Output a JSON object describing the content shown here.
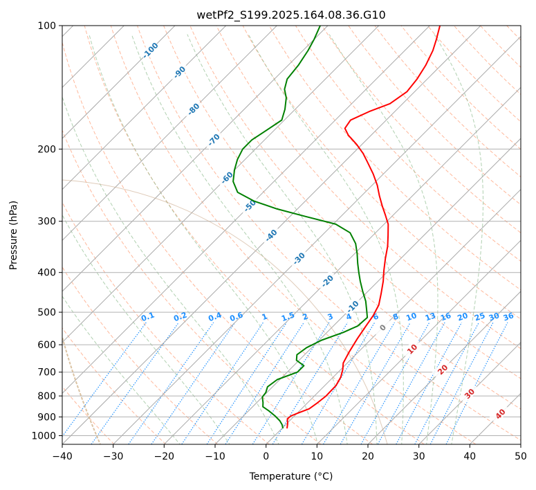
{
  "chart_data": {
    "type": "skew-t",
    "title": "wetPf2_S199.2025.164.08.36.G10",
    "xlabel": "Temperature (°C)",
    "ylabel": "Pressure (hPa)",
    "xlim": [
      -40,
      50
    ],
    "ylim_hPa": [
      1050,
      100
    ],
    "x_ticks": [
      -40,
      -30,
      -20,
      -10,
      0,
      10,
      20,
      30,
      40,
      50
    ],
    "y_ticks": [
      1000,
      900,
      800,
      700,
      600,
      500,
      400,
      300,
      200,
      100
    ],
    "log_pressure_axis": true,
    "grid": true,
    "series": [
      {
        "key": "temperature",
        "color": "#ff0000",
        "points": [
          {
            "p": 960,
            "t": 1.0
          },
          {
            "p": 935,
            "t": 0.2
          },
          {
            "p": 910,
            "t": -0.8
          },
          {
            "p": 895,
            "t": -0.7
          },
          {
            "p": 880,
            "t": 0.2
          },
          {
            "p": 860,
            "t": 1.5
          },
          {
            "p": 835,
            "t": 1.9
          },
          {
            "p": 800,
            "t": 2.3
          },
          {
            "p": 755,
            "t": 2.2
          },
          {
            "p": 720,
            "t": 1.5
          },
          {
            "p": 690,
            "t": 0.4
          },
          {
            "p": 665,
            "t": -0.8
          },
          {
            "p": 625,
            "t": -1.8
          },
          {
            "p": 580,
            "t": -2.8
          },
          {
            "p": 540,
            "t": -3.6
          },
          {
            "p": 510,
            "t": -4.2
          },
          {
            "p": 480,
            "t": -5.2
          },
          {
            "p": 450,
            "t": -7.0
          },
          {
            "p": 420,
            "t": -9.0
          },
          {
            "p": 395,
            "t": -11.0
          },
          {
            "p": 370,
            "t": -13.0
          },
          {
            "p": 345,
            "t": -15.0
          },
          {
            "p": 325,
            "t": -17.0
          },
          {
            "p": 305,
            "t": -19.2
          },
          {
            "p": 290,
            "t": -21.5
          },
          {
            "p": 275,
            "t": -24.0
          },
          {
            "p": 260,
            "t": -26.5
          },
          {
            "p": 245,
            "t": -29.0
          },
          {
            "p": 230,
            "t": -32.0
          },
          {
            "p": 215,
            "t": -35.5
          },
          {
            "p": 205,
            "t": -38.0
          },
          {
            "p": 195,
            "t": -41.0
          },
          {
            "p": 185,
            "t": -44.5
          },
          {
            "p": 178,
            "t": -46.5
          },
          {
            "p": 170,
            "t": -47.0
          },
          {
            "p": 162,
            "t": -45.0
          },
          {
            "p": 155,
            "t": -42.5
          },
          {
            "p": 145,
            "t": -41.5
          },
          {
            "p": 135,
            "t": -42.0
          },
          {
            "p": 125,
            "t": -43.0
          },
          {
            "p": 115,
            "t": -44.5
          },
          {
            "p": 108,
            "t": -46.0
          },
          {
            "p": 100,
            "t": -48.0
          }
        ]
      },
      {
        "key": "dewpoint",
        "color": "#008000",
        "points": [
          {
            "p": 960,
            "t": 0.2
          },
          {
            "p": 940,
            "t": -0.7
          },
          {
            "p": 920,
            "t": -1.9
          },
          {
            "p": 895,
            "t": -3.8
          },
          {
            "p": 870,
            "t": -6.0
          },
          {
            "p": 850,
            "t": -8.0
          },
          {
            "p": 830,
            "t": -8.8
          },
          {
            "p": 805,
            "t": -10.0
          },
          {
            "p": 785,
            "t": -10.2
          },
          {
            "p": 760,
            "t": -11.0
          },
          {
            "p": 730,
            "t": -10.5
          },
          {
            "p": 700,
            "t": -8.0
          },
          {
            "p": 675,
            "t": -8.0
          },
          {
            "p": 655,
            "t": -10.5
          },
          {
            "p": 635,
            "t": -11.5
          },
          {
            "p": 610,
            "t": -11.0
          },
          {
            "p": 585,
            "t": -9.5
          },
          {
            "p": 560,
            "t": -6.8
          },
          {
            "p": 540,
            "t": -5.2
          },
          {
            "p": 515,
            "t": -5.0
          },
          {
            "p": 495,
            "t": -6.5
          },
          {
            "p": 470,
            "t": -8.5
          },
          {
            "p": 445,
            "t": -11.0
          },
          {
            "p": 420,
            "t": -13.5
          },
          {
            "p": 400,
            "t": -15.5
          },
          {
            "p": 380,
            "t": -17.5
          },
          {
            "p": 360,
            "t": -19.5
          },
          {
            "p": 340,
            "t": -21.8
          },
          {
            "p": 320,
            "t": -25.0
          },
          {
            "p": 305,
            "t": -29.5
          },
          {
            "p": 292,
            "t": -37.0
          },
          {
            "p": 280,
            "t": -44.0
          },
          {
            "p": 268,
            "t": -50.0
          },
          {
            "p": 255,
            "t": -55.0
          },
          {
            "p": 240,
            "t": -58.0
          },
          {
            "p": 225,
            "t": -60.0
          },
          {
            "p": 212,
            "t": -61.5
          },
          {
            "p": 200,
            "t": -62.5
          },
          {
            "p": 190,
            "t": -62.5
          },
          {
            "p": 180,
            "t": -61.5
          },
          {
            "p": 170,
            "t": -60.5
          },
          {
            "p": 160,
            "t": -62.0
          },
          {
            "p": 150,
            "t": -64.0
          },
          {
            "p": 143,
            "t": -66.0
          },
          {
            "p": 135,
            "t": -67.5
          },
          {
            "p": 125,
            "t": -68.0
          },
          {
            "p": 115,
            "t": -69.0
          },
          {
            "p": 108,
            "t": -70.0
          },
          {
            "p": 100,
            "t": -71.5
          }
        ]
      }
    ],
    "isotherms_C": [
      -130,
      -120,
      -110,
      -100,
      -90,
      -80,
      -70,
      -60,
      -50,
      -40,
      -30,
      -20,
      -10,
      0,
      10,
      20,
      30,
      40,
      50
    ],
    "isotherm_labels": [
      {
        "text": "-100",
        "t": -100,
        "p": 115
      },
      {
        "text": "-90",
        "t": -90,
        "p": 130
      },
      {
        "text": "-80",
        "t": -80,
        "p": 160
      },
      {
        "text": "-70",
        "t": -70,
        "p": 190
      },
      {
        "text": "-60",
        "t": -60,
        "p": 235
      },
      {
        "text": "-50",
        "t": -50,
        "p": 275
      },
      {
        "text": "-40",
        "t": -40,
        "p": 325
      },
      {
        "text": "-30",
        "t": -30,
        "p": 370
      },
      {
        "text": "-20",
        "t": -20,
        "p": 420
      },
      {
        "text": "-10",
        "t": -10,
        "p": 485
      },
      {
        "text": "0",
        "t": 0,
        "p": 545
      },
      {
        "text": "10",
        "t": 10,
        "p": 615
      },
      {
        "text": "20",
        "t": 20,
        "p": 690
      },
      {
        "text": "30",
        "t": 30,
        "p": 790
      },
      {
        "text": "40",
        "t": 40,
        "p": 885
      }
    ],
    "isotherm_label_colors": {
      "negative": "#1f77b4",
      "zero": "#808080",
      "positive": "#d62728"
    },
    "dry_adiabats_theta_K": [
      240,
      250,
      260,
      270,
      280,
      290,
      300,
      310,
      320,
      330,
      340,
      350,
      360,
      370,
      380,
      390,
      400,
      410,
      420,
      430,
      440,
      450,
      460
    ],
    "moist_adiabats_theta_w_C": [
      -20,
      -10,
      0,
      8,
      14,
      20,
      25,
      30,
      35
    ],
    "mixing_ratio_lines_gkg": [
      "0.1",
      "0.2",
      "0.4",
      "0.6",
      "1",
      "1.5",
      "2",
      "3",
      "4",
      "6",
      "8",
      "10",
      "13",
      "16",
      "20",
      "25",
      "30",
      "36"
    ],
    "colors": {
      "isotherm": "#a9a9a9",
      "dry_adiabat": "#ffa07a",
      "moist_adiabat": "#8fbc8f",
      "mixing_ratio": "#1e90ff",
      "mixing_label": "#1e90ff",
      "outer_circle": "#d2b48c"
    }
  }
}
